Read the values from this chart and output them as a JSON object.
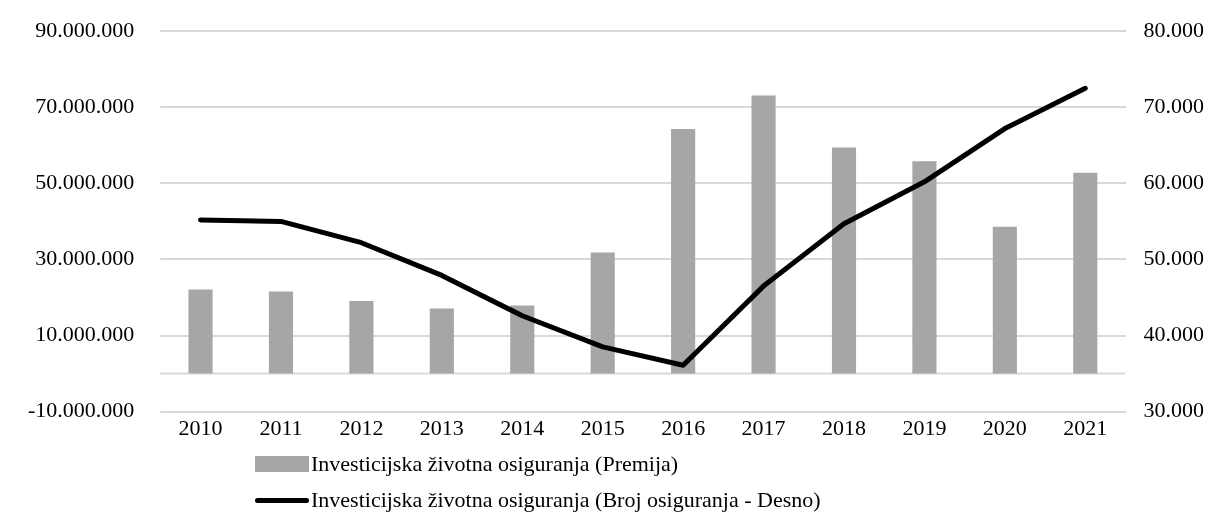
{
  "chart_data": {
    "type": "bar",
    "categories": [
      "2010",
      "2011",
      "2012",
      "2013",
      "2014",
      "2015",
      "2016",
      "2017",
      "2018",
      "2019",
      "2020",
      "2021"
    ],
    "series": [
      {
        "name": "Investicijska životna osiguranja (Premija)",
        "color": "#a6a6a6",
        "values": [
          22100000,
          21600000,
          19100000,
          17100000,
          17900000,
          31800000,
          64300000,
          73100000,
          59400000,
          55800000,
          38600000,
          52800000
        ]
      },
      {
        "name": "Investicijska životna osiguranja (Broj osiguranja - Desno)",
        "type": "line",
        "axis": "y2",
        "color": "#000000",
        "values": [
          55200,
          55000,
          52200,
          47900,
          42600,
          38500,
          36100,
          46500,
          54700,
          60200,
          67200,
          72500
        ]
      }
    ],
    "ylim": [
      -10000000,
      90000000
    ],
    "yticks": [
      {
        "value": -10000000,
        "label": "-10.000.000"
      },
      {
        "value": 10000000,
        "label": "10.000.000"
      },
      {
        "value": 30000000,
        "label": "30.000.000"
      },
      {
        "value": 50000000,
        "label": "50.000.000"
      },
      {
        "value": 70000000,
        "label": "70.000.000"
      },
      {
        "value": 90000000,
        "label": "90.000.000"
      }
    ],
    "y2lim": [
      30000,
      80000
    ],
    "y2ticks": [
      {
        "value": 30000,
        "label": "30.000"
      },
      {
        "value": 40000,
        "label": "40.000"
      },
      {
        "value": 50000,
        "label": "50.000"
      },
      {
        "value": 60000,
        "label": "60.000"
      },
      {
        "value": 70000,
        "label": "70.000"
      },
      {
        "value": 80000,
        "label": "80.000"
      }
    ],
    "grid": "y",
    "legend": "bottom",
    "marker": "none",
    "line_style": "solid"
  }
}
